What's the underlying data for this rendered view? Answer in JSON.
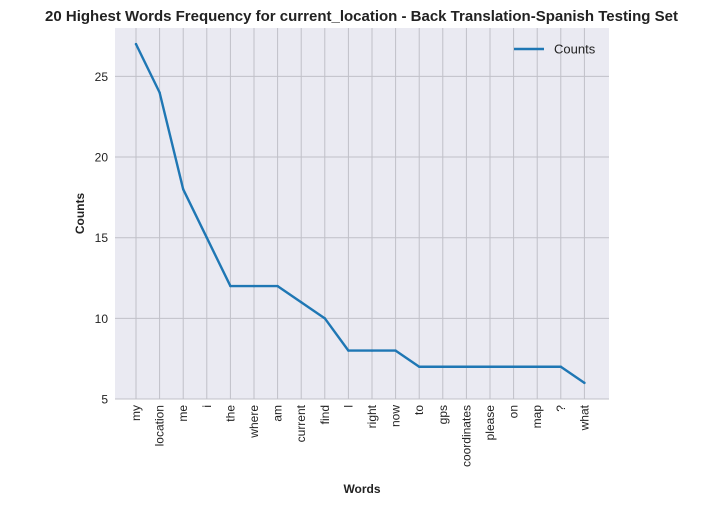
{
  "chart_data": {
    "type": "line",
    "title": "20 Highest Words Frequency for current_location - Back Translation-Spanish Testing Set",
    "xlabel": "Words",
    "ylabel": "Counts",
    "categories": [
      "my",
      "location",
      "me",
      "i",
      "the",
      "where",
      "am",
      "current",
      "find",
      "l",
      "right",
      "now",
      "to",
      "gps",
      "coordinates",
      "please",
      "on",
      "map",
      "?",
      "what"
    ],
    "series": [
      {
        "name": "Counts",
        "values": [
          27,
          24,
          18,
          15,
          12,
          12,
          12,
          11,
          10,
          8,
          8,
          8,
          7,
          7,
          7,
          7,
          7,
          7,
          7,
          6
        ]
      }
    ],
    "ylim": [
      5,
      28
    ],
    "yticks": [
      5,
      10,
      15,
      20,
      25
    ],
    "grid": true,
    "legend": "top-right",
    "colors": {
      "line": "#1f77b4",
      "plot_bg": "#eaeaf2",
      "grid": "#c0c0c8",
      "text": "#222222"
    }
  }
}
